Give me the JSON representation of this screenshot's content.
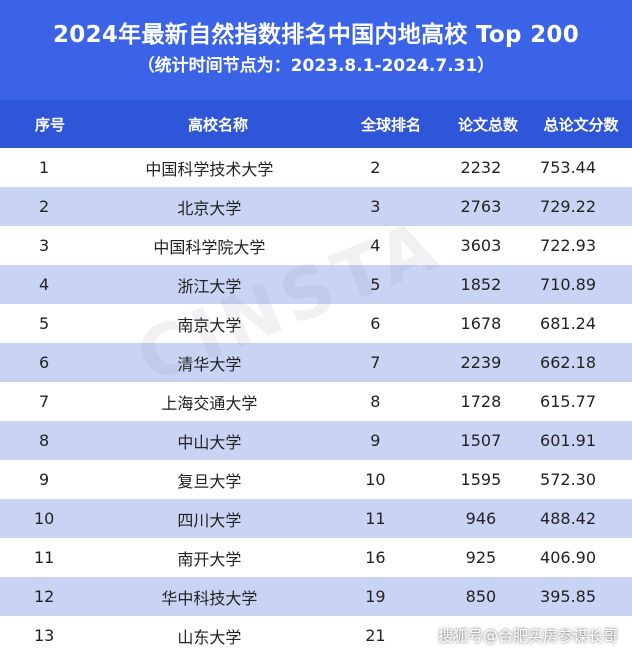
{
  "header": {
    "title": "2024年最新自然指数排名中国内地高校 Top 200",
    "subtitle": "（统计时间节点为：2023.8.1-2024.7.31）"
  },
  "columns": [
    "序号",
    "高校名称",
    "全球排名",
    "论文总数",
    "总论文分数"
  ],
  "rows": [
    {
      "no": "1",
      "name": "中国科学技术大学",
      "rank": "2",
      "papers": "2232",
      "score": "753.44"
    },
    {
      "no": "2",
      "name": "北京大学",
      "rank": "3",
      "papers": "2763",
      "score": "729.22"
    },
    {
      "no": "3",
      "name": "中国科学院大学",
      "rank": "4",
      "papers": "3603",
      "score": "722.93"
    },
    {
      "no": "4",
      "name": "浙江大学",
      "rank": "5",
      "papers": "1852",
      "score": "710.89"
    },
    {
      "no": "5",
      "name": "南京大学",
      "rank": "6",
      "papers": "1678",
      "score": "681.24"
    },
    {
      "no": "6",
      "name": "清华大学",
      "rank": "7",
      "papers": "2239",
      "score": "662.18"
    },
    {
      "no": "7",
      "name": "上海交通大学",
      "rank": "8",
      "papers": "1728",
      "score": "615.77"
    },
    {
      "no": "8",
      "name": "中山大学",
      "rank": "9",
      "papers": "1507",
      "score": "601.91"
    },
    {
      "no": "9",
      "name": "复旦大学",
      "rank": "10",
      "papers": "1595",
      "score": "572.30"
    },
    {
      "no": "10",
      "name": "四川大学",
      "rank": "11",
      "papers": "946",
      "score": "488.42"
    },
    {
      "no": "11",
      "name": "南开大学",
      "rank": "16",
      "papers": "925",
      "score": "406.90"
    },
    {
      "no": "12",
      "name": "华中科技大学",
      "rank": "19",
      "papers": "850",
      "score": "395.85"
    },
    {
      "no": "13",
      "name": "山东大学",
      "rank": "21",
      "papers": "",
      "score": ""
    }
  ],
  "watermark": "CINSTA",
  "credit": "搜狐号@合肥买房参谋长哥"
}
